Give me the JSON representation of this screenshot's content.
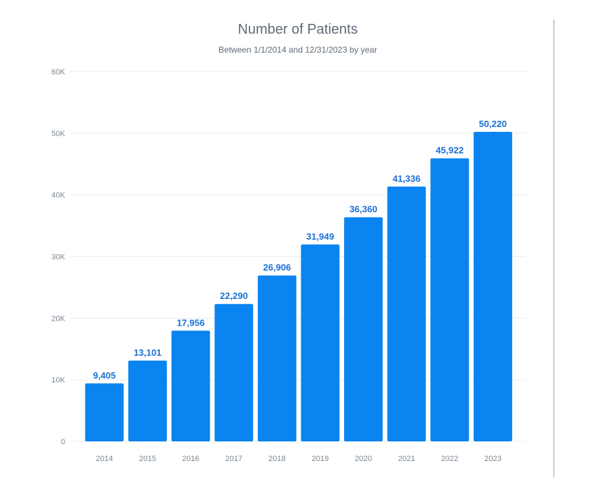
{
  "chart_data": {
    "type": "bar",
    "title": "Number of Patients",
    "subtitle": "Between 1/1/2014 and 12/31/2023 by year",
    "categories": [
      "2014",
      "2015",
      "2016",
      "2017",
      "2018",
      "2019",
      "2020",
      "2021",
      "2022",
      "2023"
    ],
    "values": [
      9405,
      13101,
      17956,
      22290,
      26906,
      31949,
      36360,
      41336,
      45922,
      50220
    ],
    "value_labels": [
      "9,405",
      "13,101",
      "17,956",
      "22,290",
      "26,906",
      "31,949",
      "36,360",
      "41,336",
      "45,922",
      "50,220"
    ],
    "y_ticks": [
      0,
      10000,
      20000,
      30000,
      40000,
      50000,
      60000
    ],
    "y_tick_labels": [
      "0",
      "10K",
      "20K",
      "30K",
      "40K",
      "50K",
      "60K"
    ],
    "ylim": [
      0,
      60000
    ],
    "xlabel": "",
    "ylabel": "",
    "grid": true,
    "legend": "none",
    "colors": {
      "bar": "#0a84f0",
      "data_label": "#1a6fd6",
      "axis_text": "#7b8794",
      "title": "#5f6b79",
      "grid": "#ececec"
    }
  }
}
